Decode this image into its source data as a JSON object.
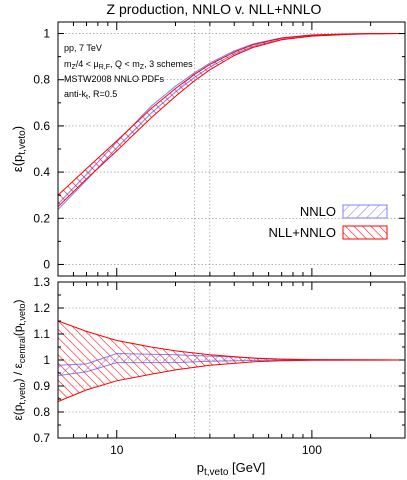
{
  "title": "Z production, NNLO v. NLL+NNLO",
  "chart_data": [
    {
      "type": "area",
      "panel": "top",
      "ylabel_base": "ε(p",
      "ylabel_sub": "t,veto",
      "ylabel_end": ")",
      "xscale": "log",
      "xlim": [
        5,
        300
      ],
      "ylim": [
        -0.05,
        1.05
      ],
      "yticks": [
        0,
        0.2,
        0.4,
        0.6,
        0.8,
        1
      ],
      "ytick_labels": [
        "0",
        "0.2",
        "0.4",
        "0.6",
        "0.8",
        "1"
      ],
      "annotations": [
        {
          "text": "pp, 7 TeV"
        },
        {
          "base": "m",
          "sub": "Z",
          "mid": "/4 < μ",
          "sub2": "R,F",
          "end": ", Q < m",
          "sub3": "Z",
          "tail": ", 3 schemes"
        },
        {
          "text": "MSTW2008 NNLO PDFs"
        },
        {
          "base": "anti-k",
          "sub": "t",
          "end": ", R=0.5"
        }
      ],
      "legend_position": "right",
      "series": [
        {
          "name": "NNLO",
          "color": "#8080ff",
          "x": [
            5,
            7,
            10,
            15,
            20,
            25,
            30,
            40,
            50,
            70,
            100,
            150,
            200,
            300
          ],
          "lower": [
            0.238,
            0.365,
            0.505,
            0.655,
            0.747,
            0.81,
            0.855,
            0.912,
            0.945,
            0.975,
            0.99,
            0.997,
            0.999,
            1.0
          ],
          "upper": [
            0.262,
            0.39,
            0.53,
            0.685,
            0.772,
            0.83,
            0.872,
            0.925,
            0.955,
            0.982,
            0.994,
            0.998,
            1.0,
            1.0
          ]
        },
        {
          "name": "NLL+NNLO",
          "color": "#ff0000",
          "x": [
            5,
            7,
            10,
            15,
            20,
            25,
            30,
            40,
            50,
            70,
            100,
            150,
            200,
            300
          ],
          "lower": [
            0.25,
            0.37,
            0.492,
            0.635,
            0.728,
            0.795,
            0.843,
            0.905,
            0.94,
            0.973,
            0.989,
            0.996,
            0.999,
            1.0
          ],
          "upper": [
            0.3,
            0.415,
            0.535,
            0.675,
            0.762,
            0.823,
            0.866,
            0.92,
            0.952,
            0.98,
            0.993,
            0.998,
            1.0,
            1.0
          ]
        }
      ]
    },
    {
      "type": "area",
      "panel": "bottom",
      "ylabel_parts": {
        "a": "ε(p",
        "a_sub": "t,veto",
        "b": ") / ε",
        "b_sub": "central",
        "c": "(p",
        "c_sub": "t,veto",
        "d": ")"
      },
      "xlabel_base": "p",
      "xlabel_sub": "t,veto",
      "xlabel_end": " [GeV]",
      "xscale": "log",
      "xlim": [
        5,
        300
      ],
      "xticks": [
        10,
        100
      ],
      "xtick_labels": [
        "10",
        "100"
      ],
      "ylim": [
        0.7,
        1.3
      ],
      "yticks": [
        0.7,
        0.8,
        0.9,
        1,
        1.1,
        1.2,
        1.3
      ],
      "ytick_labels": [
        "0.7",
        "0.8",
        "0.9",
        "1",
        "1.1",
        "1.2",
        "1.3"
      ],
      "series": [
        {
          "name": "NNLO",
          "color": "#8080ff",
          "x": [
            5,
            7,
            10,
            15,
            20,
            30,
            50,
            70,
            100,
            300
          ],
          "lower": [
            0.94,
            0.955,
            0.99,
            0.99,
            0.99,
            0.995,
            0.998,
            0.999,
            1.0,
            1.0
          ],
          "upper": [
            0.98,
            0.985,
            1.025,
            1.022,
            1.02,
            1.015,
            1.008,
            1.004,
            1.002,
            1.0
          ]
        },
        {
          "name": "NLL+NNLO",
          "color": "#ff0000",
          "x": [
            5,
            7,
            10,
            15,
            20,
            30,
            50,
            70,
            100,
            300
          ],
          "lower": [
            0.84,
            0.885,
            0.92,
            0.945,
            0.962,
            0.98,
            0.993,
            0.997,
            0.999,
            1.0
          ],
          "upper": [
            1.15,
            1.11,
            1.075,
            1.05,
            1.035,
            1.02,
            1.007,
            1.003,
            1.001,
            1.0
          ]
        }
      ]
    }
  ]
}
